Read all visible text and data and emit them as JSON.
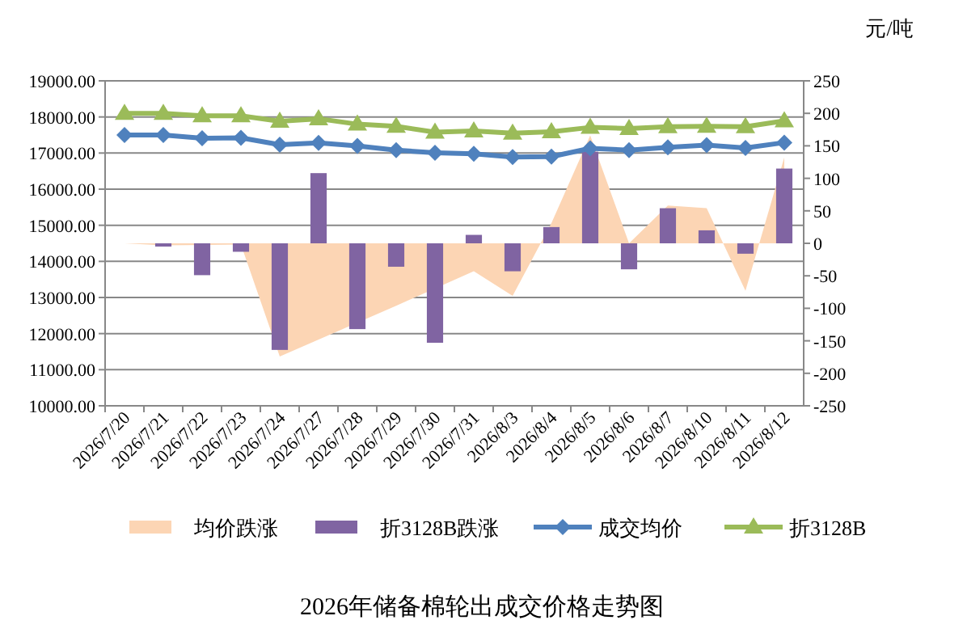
{
  "chart_data": {
    "type": "line",
    "title": "2026年储备棉轮出成交价格走势图",
    "annotations": [
      "元/吨"
    ],
    "categories": [
      "2026/7/20",
      "2026/7/21",
      "2026/7/22",
      "2026/7/23",
      "2026/7/24",
      "2026/7/27",
      "2026/7/28",
      "2026/7/29",
      "2026/7/30",
      "2026/7/31",
      "2026/8/3",
      "2026/8/4",
      "2026/8/5",
      "2026/8/6",
      "2026/8/7",
      "2026/8/10",
      "2026/8/11",
      "2026/8/12"
    ],
    "ylim": [
      10000,
      19000
    ],
    "yticks": [
      {
        "value": 10000,
        "label": "10000.00"
      },
      {
        "value": 11000,
        "label": "11000.00"
      },
      {
        "value": 12000,
        "label": "12000.00"
      },
      {
        "value": 13000,
        "label": "13000.00"
      },
      {
        "value": 14000,
        "label": "14000.00"
      },
      {
        "value": 15000,
        "label": "15000.00"
      },
      {
        "value": 16000,
        "label": "16000.00"
      },
      {
        "value": 17000,
        "label": "17000.00"
      },
      {
        "value": 18000,
        "label": "18000.00"
      },
      {
        "value": 19000,
        "label": "19000.00"
      }
    ],
    "y2lim": [
      -250,
      250
    ],
    "y2ticks": [
      -250,
      -200,
      -150,
      -100,
      -50,
      0,
      50,
      100,
      150,
      200,
      250
    ],
    "grid": "y",
    "legend": "bottom",
    "series": [
      {
        "name": "均价跌涨",
        "type": "area",
        "axis": "y2",
        "color": "#fcd5b4",
        "values": [
          0,
          -3,
          null,
          -2,
          -174,
          null,
          null,
          -96,
          null,
          -43,
          -81,
          31,
          166,
          0,
          58,
          54,
          -73,
          132
        ]
      },
      {
        "name": "折3128B跌涨",
        "type": "bar",
        "axis": "y2",
        "color": "#8064a2",
        "values": [
          0,
          -5,
          -49,
          -13,
          -164,
          108,
          -132,
          -36,
          -153,
          13,
          -43,
          25,
          141,
          -40,
          54,
          20,
          -16,
          115
        ]
      },
      {
        "name": "成交均价",
        "color": "#4f81bd",
        "marker": "diamond",
        "values": [
          17500,
          17500,
          17410,
          17420,
          17230,
          17280,
          17200,
          17080,
          17010,
          16980,
          16890,
          16900,
          17130,
          17080,
          17160,
          17220,
          17140,
          17290
        ]
      },
      {
        "name": "折3128B",
        "color": "#9bbb59",
        "marker": "triangle",
        "values": [
          18100,
          18100,
          18030,
          18030,
          17880,
          17950,
          17800,
          17740,
          17580,
          17610,
          17550,
          17590,
          17710,
          17680,
          17730,
          17740,
          17730,
          17890
        ]
      }
    ]
  }
}
